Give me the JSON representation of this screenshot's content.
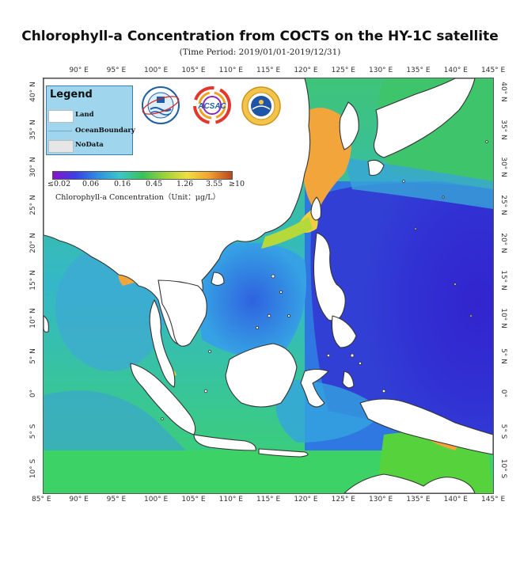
{
  "title": "Chlorophyll-a Concentration from COCTS on the HY-1C satellite",
  "subtitle": "(Time Period: 2019/01/01-2019/12/31)",
  "lon_ticks": [
    "85° E",
    "90° E",
    "95° E",
    "100° E",
    "105° E",
    "110° E",
    "115° E",
    "120° E",
    "125° E",
    "130° E",
    "135° E",
    "140° E",
    "145° E"
  ],
  "lat_ticks": [
    "40° N",
    "35° N",
    "30° N",
    "25° N",
    "20° N",
    "15° N",
    "10° N",
    "5° N",
    "0°",
    "5° S",
    "10° S"
  ],
  "legend": {
    "title": "Legend",
    "items": [
      {
        "label": "Land",
        "color": "#ffffff"
      },
      {
        "label": "OceanBoundary",
        "color": "#9fd6ee"
      },
      {
        "label": "NoData",
        "color": "#e6e6e6"
      }
    ]
  },
  "colorbar": {
    "labels": [
      "≤0.02",
      "0.06",
      "0.16",
      "0.45",
      "1.26",
      "3.55",
      "≥10"
    ],
    "title": "Chlorophyll-a Concentration（Unit：μg/L）",
    "colors": [
      "#8a12c9",
      "#3a3fe6",
      "#2f8fe0",
      "#3cc7c9",
      "#38c25a",
      "#9dd23a",
      "#f0e040",
      "#f2a030",
      "#b8461e"
    ]
  },
  "logos": [
    {
      "name": "nsoas-logo-icon"
    },
    {
      "name": "acsac-logo-icon",
      "text": "ACSAC"
    },
    {
      "name": "cnsa-logo-icon"
    }
  ],
  "map": {
    "lon_range": [
      85,
      145
    ],
    "lat_range": [
      -13,
      42
    ],
    "ocean_colors": {
      "deep": "#3a32d8",
      "open": "#2f6fe6",
      "mid": "#35a8e6",
      "shelf": "#3cd26a",
      "coastal": "#a6dc3a",
      "bloom": "#f2a53a"
    }
  }
}
